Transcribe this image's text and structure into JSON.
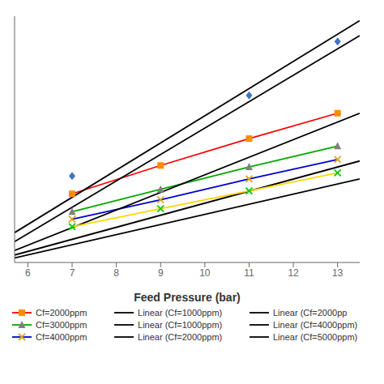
{
  "chart_data": {
    "type": "line",
    "xlabel": "Feed Pressure (bar)",
    "xlim": [
      5.7,
      13.5
    ],
    "xticks": [
      6,
      7,
      8,
      9,
      10,
      11,
      12,
      13
    ],
    "ylim": [
      -0.1,
      1.55
    ],
    "tick_labels": "x",
    "legend": "bottom",
    "series": [
      {
        "name": "Cf=2000ppm",
        "type": "line",
        "color": "#FF0000",
        "x": [
          7,
          9,
          11,
          13
        ],
        "values": [
          0.36,
          0.55,
          0.73,
          0.9
        ]
      },
      {
        "name": "Cf=3000ppm",
        "type": "line",
        "color": "#00AA00",
        "x": [
          7,
          9,
          11,
          13
        ],
        "values": [
          0.24,
          0.39,
          0.54,
          0.68
        ]
      },
      {
        "name": "Cf=4000ppm",
        "type": "line",
        "color": "#0000CD",
        "x": [
          7,
          9,
          11,
          13
        ],
        "values": [
          0.19,
          0.32,
          0.46,
          0.59
        ]
      },
      {
        "name": "Linear (Cf=1000ppm)",
        "type": "line",
        "color": "#000000",
        "x": [
          5.7,
          13.5
        ],
        "values": [
          0.1,
          1.52
        ]
      },
      {
        "name": "Linear (Cf=1000ppm)",
        "type": "line",
        "color": "#000000",
        "x": [
          5.7,
          13.5
        ],
        "values": [
          0.04,
          1.42
        ]
      },
      {
        "name": "Linear (Cf=2000ppm)",
        "type": "line",
        "color": "#000000",
        "x": [
          5.7,
          13.5
        ],
        "values": [
          -0.02,
          0.9
        ]
      },
      {
        "name": "Linear (Cf=2000pp",
        "type": "line",
        "color": "#000000"
      },
      {
        "name": "Linear (Cf=4000ppm)",
        "type": "line",
        "color": "#000000",
        "x": [
          5.7,
          13.5
        ],
        "values": [
          -0.05,
          0.58
        ]
      },
      {
        "name": "Linear (Cf=5000ppm)",
        "type": "line",
        "color": "#000000",
        "x": [
          5.7,
          13.5
        ],
        "values": [
          -0.07,
          0.46
        ]
      },
      {
        "type": "line",
        "color": "#FFD700",
        "x": [
          7,
          9,
          11,
          13
        ],
        "values": [
          0.14,
          0.26,
          0.38,
          0.5
        ]
      },
      {
        "type": "scatter",
        "color": "#00CC00",
        "marker": "x",
        "x": [
          7,
          9,
          11,
          13
        ],
        "values": [
          0.14,
          0.26,
          0.38,
          0.5
        ]
      },
      {
        "type": "scatter",
        "color": "#DAA520",
        "marker": "x",
        "x": [
          7,
          9,
          11,
          13
        ],
        "values": [
          0.19,
          0.32,
          0.46,
          0.59
        ]
      },
      {
        "type": "scatter",
        "color": "#808080",
        "marker": "triangle",
        "x": [
          7,
          9,
          11,
          13
        ],
        "values": [
          0.24,
          0.39,
          0.54,
          0.68
        ]
      },
      {
        "type": "scatter",
        "color": "#FF8C00",
        "marker": "square",
        "x": [
          7,
          9,
          11,
          13
        ],
        "values": [
          0.36,
          0.55,
          0.73,
          0.9
        ]
      },
      {
        "type": "scatter",
        "color": "#4472C4",
        "marker": "diamond",
        "x": [
          7,
          11,
          13
        ],
        "values": [
          0.48,
          1.02,
          1.38
        ]
      }
    ]
  }
}
